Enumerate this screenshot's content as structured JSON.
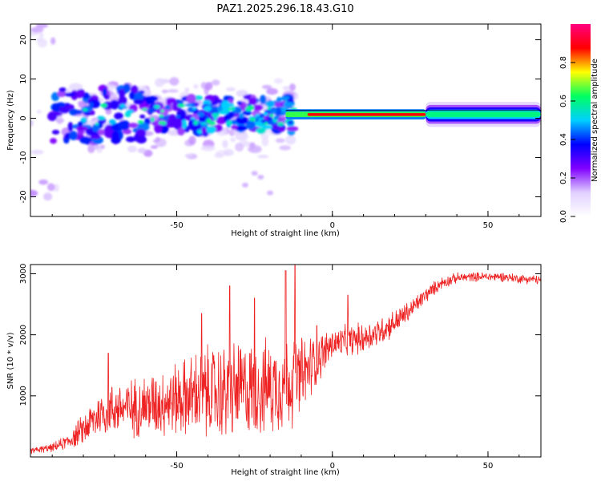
{
  "figure_title": "PAZ1.2025.296.18.43.G10",
  "chart_data": [
    {
      "type": "heatmap",
      "title": "",
      "xlabel": "Height of straight line (km)",
      "ylabel": "Frequency (Hz)",
      "xlim": [
        -97,
        67
      ],
      "ylim": [
        -25,
        24
      ],
      "xticks": [
        -50,
        0,
        50
      ],
      "yticks": [
        -20,
        -10,
        0,
        10,
        20
      ],
      "colorbar": {
        "label": "Normalized spectral amplitude",
        "range": [
          0.0,
          1.0
        ],
        "ticks": [
          "0.0",
          "0.2",
          "0.4",
          "0.6",
          "0.8"
        ],
        "colormap": [
          "#ffffff",
          "#e0d0ff",
          "#8000ff",
          "#0000ff",
          "#00d0ff",
          "#00ff60",
          "#ffff00",
          "#ff0000",
          "#ff0080"
        ]
      },
      "description_text": "Spectrogram: scattered low-amplitude energy near 0 Hz for heights below -15 km; strong narrow band near +1 Hz from -15 km to 30 km; broad moderate band near +1 Hz from 30 km to 67 km"
    },
    {
      "type": "line",
      "title": "",
      "xlabel": "Height of straight line (km)",
      "ylabel": "SNR (10 * v/v)",
      "xlim": [
        -97,
        67
      ],
      "ylim": [
        0,
        3150
      ],
      "xticks": [
        -50,
        0,
        50
      ],
      "yticks": [
        1000,
        2000,
        3000
      ],
      "series": [
        {
          "name": "SNR",
          "color": "#ee2222",
          "trend_x": [
            -97,
            -90,
            -85,
            -80,
            -75,
            -70,
            -65,
            -60,
            -55,
            -50,
            -45,
            -40,
            -35,
            -30,
            -25,
            -20,
            -15,
            -10,
            -5,
            0,
            5,
            10,
            15,
            20,
            25,
            30,
            35,
            40,
            45,
            50,
            55,
            60,
            67
          ],
          "trend_y": [
            100,
            150,
            250,
            450,
            700,
            800,
            800,
            850,
            900,
            950,
            1000,
            1050,
            1050,
            1100,
            1100,
            1150,
            1200,
            1300,
            1600,
            1850,
            1900,
            1950,
            2050,
            2200,
            2400,
            2650,
            2850,
            2930,
            2950,
            2950,
            2950,
            2920,
            2900
          ],
          "spread_y": [
            60,
            80,
            150,
            300,
            450,
            500,
            550,
            600,
            650,
            700,
            800,
            900,
            950,
            950,
            900,
            900,
            900,
            800,
            500,
            300,
            300,
            300,
            280,
            250,
            200,
            150,
            120,
            100,
            90,
            90,
            90,
            90,
            90
          ],
          "peaks": [
            {
              "x": -72,
              "y": 1700
            },
            {
              "x": -42,
              "y": 2350
            },
            {
              "x": -33,
              "y": 2800
            },
            {
              "x": -25,
              "y": 2600
            },
            {
              "x": -15,
              "y": 3050
            },
            {
              "x": -12,
              "y": 3150
            },
            {
              "x": -5,
              "y": 2150
            },
            {
              "x": 5,
              "y": 2650
            }
          ]
        }
      ]
    }
  ]
}
